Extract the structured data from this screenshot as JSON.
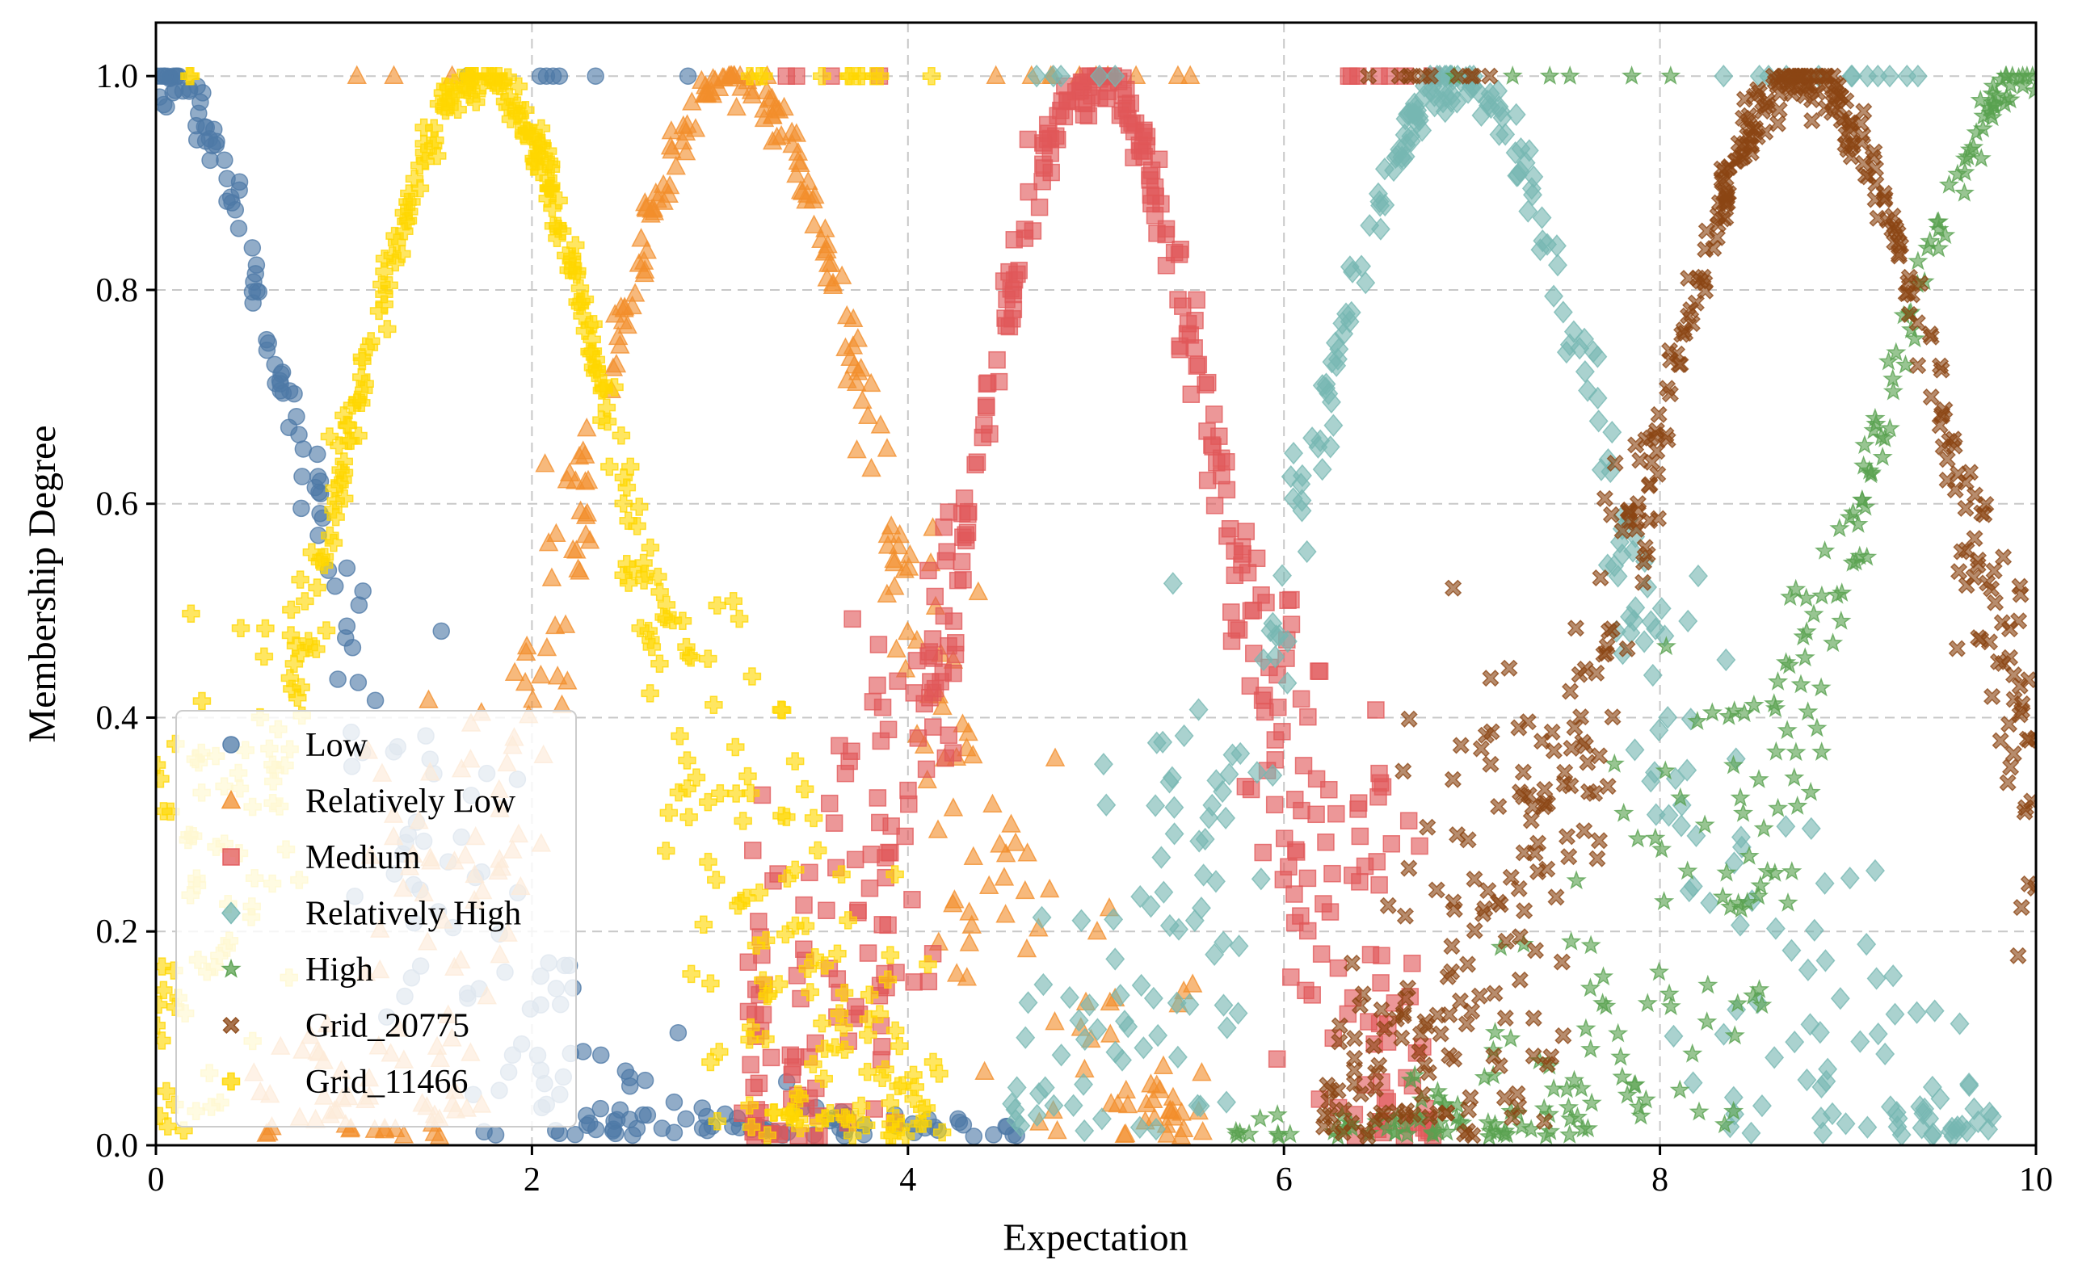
{
  "chart_data": {
    "type": "scatter",
    "xlabel": "Expectation",
    "ylabel": "Membership Degree",
    "xlim": [
      0,
      10
    ],
    "ylim": [
      0,
      1.05
    ],
    "x_ticks": [
      0,
      2,
      4,
      6,
      8,
      10
    ],
    "y_ticks": [
      0.0,
      0.2,
      0.4,
      0.6,
      0.8,
      1.0
    ],
    "x_tick_labels": [
      "0",
      "2",
      "4",
      "6",
      "8",
      "10"
    ],
    "y_tick_labels": [
      "0.0",
      "0.2",
      "0.4",
      "0.6",
      "0.8",
      "1.0"
    ],
    "grid": true,
    "legend_position": "lower-left",
    "series": [
      {
        "name": "Low",
        "marker": "circle",
        "color": "#4e79a7",
        "center": 0.0,
        "width": 1.15,
        "x_range": [
          0,
          4.6
        ],
        "count": 380
      },
      {
        "name": "Relatively Low",
        "marker": "triangle",
        "color": "#f28e2b",
        "center": 3.08,
        "width": 1.15,
        "x_range": [
          0.5,
          5.6
        ],
        "count": 420
      },
      {
        "name": "Medium",
        "marker": "square",
        "color": "#e15759",
        "center": 5.0,
        "width": 0.95,
        "x_range": [
          3.1,
          6.8
        ],
        "count": 460
      },
      {
        "name": "Relatively High",
        "marker": "diamond",
        "color": "#76b7b2",
        "center": 6.92,
        "width": 1.15,
        "x_range": [
          4.5,
          9.8
        ],
        "count": 420
      },
      {
        "name": "High",
        "marker": "star",
        "color": "#59a14f",
        "center": 10.0,
        "width": 1.3,
        "x_range": [
          5.7,
          10
        ],
        "count": 360
      },
      {
        "name": "Grid_20775",
        "marker": "x",
        "color": "#8b4513",
        "center": 8.76,
        "width": 1.2,
        "x_range": [
          6.2,
          10
        ],
        "count": 480
      },
      {
        "name": "Grid_11466",
        "marker": "plus",
        "color": "#ffd700",
        "center": 1.73,
        "width": 1.1,
        "x_range": [
          0,
          4.2
        ],
        "count": 480
      }
    ]
  }
}
